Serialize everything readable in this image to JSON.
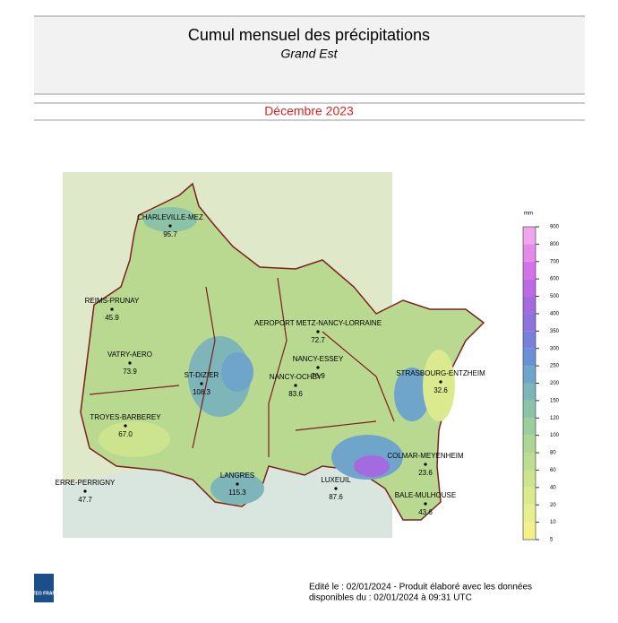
{
  "header": {
    "title": "Cumul mensuel des précipitations",
    "subtitle": "Grand Est",
    "period": "Décembre 2023"
  },
  "stations": [
    {
      "name": "CHARLEVILLE-MEZ",
      "value": "95.7"
    },
    {
      "name": "REIMS-PRUNAY",
      "value": "45.9"
    },
    {
      "name": "AEROPORT METZ-NANCY-LORRAINE",
      "value": "72.7"
    },
    {
      "name": "VATRY-AERO",
      "value": "73.9"
    },
    {
      "name": "ST-DIZIER",
      "value": "108.3"
    },
    {
      "name": "NANCY-ESSEY",
      "value": "76.9"
    },
    {
      "name": "NANCY-OCHEY",
      "value": "83.6"
    },
    {
      "name": "STRASBOURG-ENTZHEIM",
      "value": "32.6"
    },
    {
      "name": "TROYES-BARBEREY",
      "value": "67.0"
    },
    {
      "name": "LANGRES",
      "value": "115.3"
    },
    {
      "name": "COLMAR-MEYENHEIM",
      "value": "23.6"
    },
    {
      "name": "BALE-MULHOUSE",
      "value": "43.6"
    },
    {
      "name": "LUXEUIL",
      "value": "87.6"
    },
    {
      "name": "ERRE-PERRIGNY",
      "value": "47.7"
    }
  ],
  "legend": {
    "unit": "mm",
    "ticks": [
      5,
      10,
      20,
      40,
      60,
      80,
      100,
      120,
      150,
      200,
      250,
      300,
      350,
      400,
      500,
      600,
      700,
      800,
      900
    ],
    "colors": [
      "#f4f08a",
      "#e8ef8e",
      "#dcea8f",
      "#cde48e",
      "#bedd90",
      "#aed594",
      "#9ccd9c",
      "#8cc3a8",
      "#7db5b8",
      "#6fa5cb",
      "#6a91d6",
      "#7880dc",
      "#8c74dc",
      "#a46be0",
      "#bd6ae2",
      "#d473e6",
      "#e488ea",
      "#f0a6ef"
    ]
  },
  "footer": {
    "logo": "METEO FRANCE",
    "line1": "Edité le : 02/01/2024 - Produit élaboré avec les données",
    "line2": "disponibles du : 02/01/2024 à 09:31 UTC"
  }
}
